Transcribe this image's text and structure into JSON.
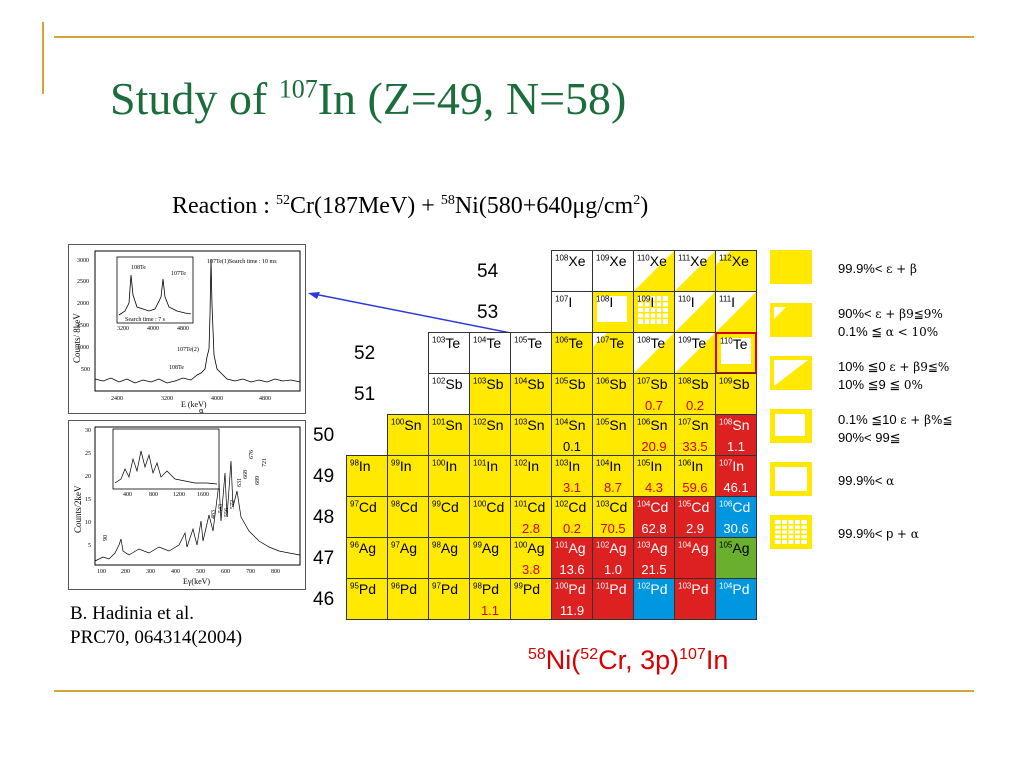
{
  "slide": {
    "title_pre": "Study of ",
    "title_mass": "107",
    "title_post": "In (Z=49, N=58)",
    "reaction_label": "Reaction : ",
    "reaction_m1": "52",
    "reaction_p1": "Cr(187MeV) + ",
    "reaction_m2": "58",
    "reaction_p2": "Ni(580+640μg/cm",
    "reaction_exp": "2",
    "reaction_close": ")",
    "reference_line1": "B. Hadinia et al.",
    "reference_line2": "PRC70, 064314(2004)",
    "rxn2_m1": "58",
    "rxn2_t1": "Ni(",
    "rxn2_m2": "52",
    "rxn2_t2": "Cr, 3p)",
    "rxn2_m3": "107",
    "rxn2_t3": "In",
    "accent_color": "#1b6e3c",
    "frame_color": "#d4a637"
  },
  "spectrum_top": {
    "ylabel": "Counts/ 8keV",
    "xlabel": "E (keV)",
    "xlabel_sub": "α",
    "xticks": [
      "2400",
      "3200",
      "4000",
      "4800"
    ],
    "yticks": [
      "3000",
      "2500",
      "2000",
      "1500",
      "1000",
      "500"
    ],
    "annot_main": "107Te(1)Search time : 10 ms",
    "annot_te2": "107Te(2)",
    "annot_te108": "108Te",
    "inset_label_a": "108Te",
    "inset_label_b": "107Te",
    "inset_caption": "Search time : 7 s",
    "inset_xticks": [
      "3200",
      "4000",
      "4800"
    ]
  },
  "spectrum_bottom": {
    "ylabel": "Counts/2keV",
    "xlabel": "Eγ(keV)",
    "xticks": [
      "100",
      "200",
      "300",
      "400",
      "500",
      "600",
      "700",
      "800"
    ],
    "yticks": [
      "30",
      "25",
      "20",
      "15",
      "10",
      "5"
    ],
    "inset_xticks": [
      "400",
      "800",
      "1200",
      "1600"
    ],
    "peaks": [
      "90",
      "483",
      "543",
      "556",
      "572",
      "631",
      "668",
      "676",
      "689",
      "721"
    ]
  },
  "nuclide_chart": {
    "colors": {
      "alpha": "#ffe900",
      "proton": "#ffe900",
      "beta_plus": "#dd2020",
      "stable": "#0096e0",
      "beta_minus": "#6ab02e",
      "none": "#ffffff"
    },
    "row_labels": [
      {
        "z": "54",
        "row": 0,
        "col": 4
      },
      {
        "z": "53",
        "row": 1,
        "col": 4
      },
      {
        "z": "52",
        "row": 2,
        "col": 1
      },
      {
        "z": "51",
        "row": 3,
        "col": 1
      },
      {
        "z": "50",
        "row": 4,
        "col": 0
      },
      {
        "z": "49",
        "row": 5,
        "col": 0
      },
      {
        "z": "48",
        "row": 6,
        "col": 0
      },
      {
        "z": "47",
        "row": 7,
        "col": 0
      },
      {
        "z": "46",
        "row": 8,
        "col": 0
      }
    ],
    "cells": [
      {
        "row": 0,
        "col": 5,
        "mass": "108",
        "el": "Xe",
        "color": "none"
      },
      {
        "row": 0,
        "col": 6,
        "mass": "109",
        "el": "Xe",
        "color": "none"
      },
      {
        "row": 0,
        "col": 7,
        "mass": "110",
        "el": "Xe",
        "color": "alpha",
        "pattern": "half"
      },
      {
        "row": 0,
        "col": 8,
        "mass": "111",
        "el": "Xe",
        "color": "alpha",
        "pattern": "half"
      },
      {
        "row": 0,
        "col": 9,
        "mass": "112",
        "el": "Xe",
        "color": "alpha",
        "pattern": "corner"
      },
      {
        "row": 1,
        "col": 5,
        "mass": "107",
        "el": "I",
        "color": "none"
      },
      {
        "row": 1,
        "col": 6,
        "mass": "108",
        "el": "I",
        "color": "alpha",
        "pattern": "frame"
      },
      {
        "row": 1,
        "col": 7,
        "mass": "109",
        "el": "I",
        "color": "proton",
        "pattern": "grid"
      },
      {
        "row": 1,
        "col": 8,
        "mass": "110",
        "el": "I",
        "color": "alpha",
        "pattern": "half"
      },
      {
        "row": 1,
        "col": 9,
        "mass": "111",
        "el": "I",
        "color": "alpha",
        "pattern": "half"
      },
      {
        "row": 2,
        "col": 2,
        "mass": "103",
        "el": "Te",
        "color": "none"
      },
      {
        "row": 2,
        "col": 3,
        "mass": "104",
        "el": "Te",
        "color": "none"
      },
      {
        "row": 2,
        "col": 4,
        "mass": "105",
        "el": "Te",
        "color": "none"
      },
      {
        "row": 2,
        "col": 5,
        "mass": "106",
        "el": "Te",
        "color": "alpha"
      },
      {
        "row": 2,
        "col": 6,
        "mass": "107",
        "el": "Te",
        "color": "alpha",
        "pattern": "corner"
      },
      {
        "row": 2,
        "col": 7,
        "mass": "108",
        "el": "Te",
        "color": "alpha",
        "pattern": "half"
      },
      {
        "row": 2,
        "col": 8,
        "mass": "109",
        "el": "Te",
        "color": "alpha",
        "pattern": "half"
      },
      {
        "row": 2,
        "col": 9,
        "mass": "110",
        "el": "Te",
        "color": "alpha",
        "pattern": "frame",
        "highlight": true
      },
      {
        "row": 3,
        "col": 2,
        "mass": "102",
        "el": "Sb",
        "color": "none"
      },
      {
        "row": 3,
        "col": 3,
        "mass": "103",
        "el": "Sb",
        "color": "alpha"
      },
      {
        "row": 3,
        "col": 4,
        "mass": "104",
        "el": "Sb",
        "color": "alpha"
      },
      {
        "row": 3,
        "col": 5,
        "mass": "105",
        "el": "Sb",
        "color": "alpha"
      },
      {
        "row": 3,
        "col": 6,
        "mass": "106",
        "el": "Sb",
        "color": "alpha"
      },
      {
        "row": 3,
        "col": 7,
        "mass": "107",
        "el": "Sb",
        "color": "alpha",
        "value": "0.7",
        "valcolor": "#d80000"
      },
      {
        "row": 3,
        "col": 8,
        "mass": "108",
        "el": "Sb",
        "color": "alpha",
        "value": "0.2",
        "valcolor": "#d80000"
      },
      {
        "row": 3,
        "col": 9,
        "mass": "109",
        "el": "Sb",
        "color": "alpha"
      },
      {
        "row": 4,
        "col": 1,
        "mass": "100",
        "el": "Sn",
        "color": "alpha"
      },
      {
        "row": 4,
        "col": 2,
        "mass": "101",
        "el": "Sn",
        "color": "alpha"
      },
      {
        "row": 4,
        "col": 3,
        "mass": "102",
        "el": "Sn",
        "color": "alpha"
      },
      {
        "row": 4,
        "col": 4,
        "mass": "103",
        "el": "Sn",
        "color": "alpha"
      },
      {
        "row": 4,
        "col": 5,
        "mass": "104",
        "el": "Sn",
        "color": "alpha",
        "value": "0.1",
        "valcolor": "#000000"
      },
      {
        "row": 4,
        "col": 6,
        "mass": "105",
        "el": "Sn",
        "color": "alpha"
      },
      {
        "row": 4,
        "col": 7,
        "mass": "106",
        "el": "Sn",
        "color": "alpha",
        "value": "20.9",
        "valcolor": "#d80000"
      },
      {
        "row": 4,
        "col": 8,
        "mass": "107",
        "el": "Sn",
        "color": "alpha",
        "value": "33.5",
        "valcolor": "#d80000"
      },
      {
        "row": 4,
        "col": 9,
        "mass": "108",
        "el": "Sn",
        "color": "beta_plus",
        "value": "1.1",
        "valcolor": "#ffffff"
      },
      {
        "row": 5,
        "col": 0,
        "mass": "98",
        "el": "In",
        "color": "alpha"
      },
      {
        "row": 5,
        "col": 1,
        "mass": "99",
        "el": "In",
        "color": "alpha"
      },
      {
        "row": 5,
        "col": 2,
        "mass": "100",
        "el": "In",
        "color": "alpha"
      },
      {
        "row": 5,
        "col": 3,
        "mass": "101",
        "el": "In",
        "color": "alpha"
      },
      {
        "row": 5,
        "col": 4,
        "mass": "102",
        "el": "In",
        "color": "alpha"
      },
      {
        "row": 5,
        "col": 5,
        "mass": "103",
        "el": "In",
        "color": "alpha",
        "value": "3.1",
        "valcolor": "#d80000"
      },
      {
        "row": 5,
        "col": 6,
        "mass": "104",
        "el": "In",
        "color": "alpha",
        "value": "8.7",
        "valcolor": "#d80000"
      },
      {
        "row": 5,
        "col": 7,
        "mass": "105",
        "el": "In",
        "color": "alpha",
        "value": "4.3",
        "valcolor": "#d80000"
      },
      {
        "row": 5,
        "col": 8,
        "mass": "106",
        "el": "In",
        "color": "alpha",
        "value": "59.6",
        "valcolor": "#d80000"
      },
      {
        "row": 5,
        "col": 9,
        "mass": "107",
        "el": "In",
        "color": "beta_plus",
        "value": "46.1",
        "valcolor": "#ffffff"
      },
      {
        "row": 6,
        "col": 0,
        "mass": "97",
        "el": "Cd",
        "color": "alpha"
      },
      {
        "row": 6,
        "col": 1,
        "mass": "98",
        "el": "Cd",
        "color": "alpha"
      },
      {
        "row": 6,
        "col": 2,
        "mass": "99",
        "el": "Cd",
        "color": "alpha"
      },
      {
        "row": 6,
        "col": 3,
        "mass": "100",
        "el": "Cd",
        "color": "alpha"
      },
      {
        "row": 6,
        "col": 4,
        "mass": "101",
        "el": "Cd",
        "color": "alpha",
        "value": "2.8",
        "valcolor": "#d80000"
      },
      {
        "row": 6,
        "col": 5,
        "mass": "102",
        "el": "Cd",
        "color": "alpha",
        "value": "0.2",
        "valcolor": "#d80000"
      },
      {
        "row": 6,
        "col": 6,
        "mass": "103",
        "el": "Cd",
        "color": "alpha",
        "value": "70.5",
        "valcolor": "#d80000"
      },
      {
        "row": 6,
        "col": 7,
        "mass": "104",
        "el": "Cd",
        "color": "beta_plus",
        "value": "62.8",
        "valcolor": "#ffffff"
      },
      {
        "row": 6,
        "col": 8,
        "mass": "105",
        "el": "Cd",
        "color": "beta_plus",
        "value": "2.9",
        "valcolor": "#ffffff"
      },
      {
        "row": 6,
        "col": 9,
        "mass": "106",
        "el": "Cd",
        "color": "stable",
        "value": "30.6",
        "valcolor": "#ffffff"
      },
      {
        "row": 7,
        "col": 0,
        "mass": "96",
        "el": "Ag",
        "color": "alpha"
      },
      {
        "row": 7,
        "col": 1,
        "mass": "97",
        "el": "Ag",
        "color": "alpha"
      },
      {
        "row": 7,
        "col": 2,
        "mass": "98",
        "el": "Ag",
        "color": "alpha"
      },
      {
        "row": 7,
        "col": 3,
        "mass": "99",
        "el": "Ag",
        "color": "alpha"
      },
      {
        "row": 7,
        "col": 4,
        "mass": "100",
        "el": "Ag",
        "color": "alpha",
        "value": "3.8",
        "valcolor": "#d80000"
      },
      {
        "row": 7,
        "col": 5,
        "mass": "101",
        "el": "Ag",
        "color": "beta_plus",
        "value": "13.6",
        "valcolor": "#ffffff"
      },
      {
        "row": 7,
        "col": 6,
        "mass": "102",
        "el": "Ag",
        "color": "beta_plus",
        "value": "1.0",
        "valcolor": "#ffffff"
      },
      {
        "row": 7,
        "col": 7,
        "mass": "103",
        "el": "Ag",
        "color": "beta_plus",
        "value": "21.5",
        "valcolor": "#ffffff"
      },
      {
        "row": 7,
        "col": 8,
        "mass": "104",
        "el": "Ag",
        "color": "beta_plus"
      },
      {
        "row": 7,
        "col": 9,
        "mass": "105",
        "el": "Ag",
        "color": "beta_minus"
      },
      {
        "row": 8,
        "col": 0,
        "mass": "95",
        "el": "Pd",
        "color": "alpha"
      },
      {
        "row": 8,
        "col": 1,
        "mass": "96",
        "el": "Pd",
        "color": "alpha"
      },
      {
        "row": 8,
        "col": 2,
        "mass": "97",
        "el": "Pd",
        "color": "alpha"
      },
      {
        "row": 8,
        "col": 3,
        "mass": "98",
        "el": "Pd",
        "color": "alpha",
        "value": "1.1",
        "valcolor": "#d80000"
      },
      {
        "row": 8,
        "col": 4,
        "mass": "99",
        "el": "Pd",
        "color": "alpha"
      },
      {
        "row": 8,
        "col": 5,
        "mass": "100",
        "el": "Pd",
        "color": "beta_plus",
        "value": "11.9",
        "valcolor": "#ffffff"
      },
      {
        "row": 8,
        "col": 6,
        "mass": "101",
        "el": "Pd",
        "color": "beta_plus"
      },
      {
        "row": 8,
        "col": 7,
        "mass": "102",
        "el": "Pd",
        "color": "stable"
      },
      {
        "row": 8,
        "col": 8,
        "mass": "103",
        "el": "Pd",
        "color": "beta_plus"
      },
      {
        "row": 8,
        "col": 9,
        "mass": "104",
        "el": "Pd",
        "color": "stable"
      }
    ]
  },
  "legend": [
    {
      "pattern": "full",
      "line1": "99.9%< ",
      "line1g": "ε + β",
      "line2": "",
      "line2g": ""
    },
    {
      "pattern": "corner",
      "line1": "90%< ",
      "line1g": "ε + β9≦9%",
      "line2": "0.1% ≦ ",
      "line2g": "α < 10%"
    },
    {
      "pattern": "half",
      "line1": "10% ≦0 ",
      "line1g": "ε + β9≦%",
      "line2": "10% ≦9 ≦ ",
      "line2g": "0%"
    },
    {
      "pattern": "frame",
      "line1": "0.1% ≦10 ",
      "line1g": "ε + β%≦",
      "line2": "90%< 99≦",
      "line2g": ""
    },
    {
      "pattern": "outline",
      "line1": "99.9%< ",
      "line1g": "α",
      "line2": "",
      "line2g": ""
    },
    {
      "pattern": "grid",
      "line1": "99.9%< p ",
      "line1g": " + α",
      "line2": "",
      "line2g": ""
    }
  ]
}
